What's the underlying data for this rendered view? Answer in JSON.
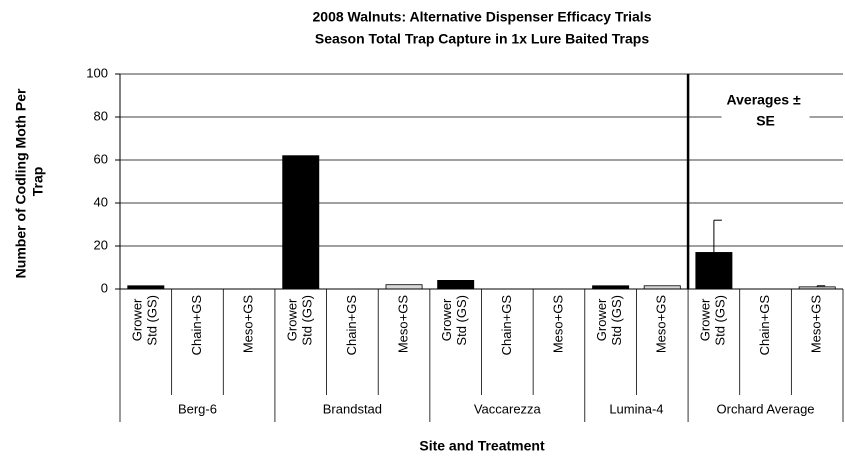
{
  "chart_data": {
    "type": "bar",
    "title": "2008 Walnuts: Alternative Dispenser Efficacy Trials",
    "subtitle": "Season Total Trap Capture in 1x Lure Baited Traps",
    "y_label": "Number of Codling Moth Per Trap",
    "x_label": "Site and Treatment",
    "annotation": "Averages ± SE",
    "ylim": [
      0,
      100
    ],
    "yticks": [
      0,
      20,
      40,
      60,
      80,
      100
    ],
    "grid": true,
    "colors": {
      "Grower Std (GS)": "#000000",
      "Chain+GS": "#808080",
      "Meso+GS": "#d9d9d9"
    },
    "groups": [
      {
        "name": "Berg-6",
        "categories": [
          "Grower Std (GS)",
          "Chain+GS",
          "Meso+GS"
        ],
        "values": [
          1.5,
          0,
          0
        ]
      },
      {
        "name": "Brandstad",
        "categories": [
          "Grower Std (GS)",
          "Chain+GS",
          "Meso+GS"
        ],
        "values": [
          62,
          0,
          2
        ]
      },
      {
        "name": "Vaccarezza",
        "categories": [
          "Grower Std (GS)",
          "Chain+GS",
          "Meso+GS"
        ],
        "values": [
          4,
          0,
          0
        ]
      },
      {
        "name": "Lumina-4",
        "categories": [
          "Grower Std (GS)",
          "Meso+GS"
        ],
        "values": [
          1.5,
          1.5
        ]
      },
      {
        "name": "Orchard Average",
        "categories": [
          "Grower Std (GS)",
          "Chain+GS",
          "Meso+GS"
        ],
        "values": [
          17,
          0,
          1
        ],
        "errors": [
          15,
          null,
          0.5
        ]
      }
    ]
  }
}
